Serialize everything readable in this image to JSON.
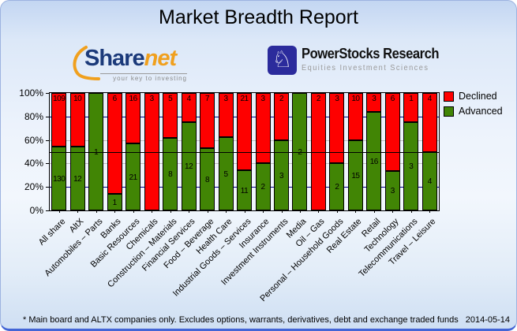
{
  "title": "Market Breadth Report",
  "logos": {
    "sharenet": {
      "part1": "Share",
      "part2": "net",
      "tagline": "your key to investing"
    },
    "powerstocks": {
      "name": "PowerStocks  Research",
      "tagline": "Equities Investment Sciences",
      "icon": "knight-chess-icon"
    }
  },
  "chart_data": {
    "type": "bar",
    "stacked": true,
    "unit": "counts shown as % of total",
    "categories": [
      "All share",
      "AltX",
      "Automobiles – Parts",
      "Banks",
      "Basic Resources",
      "Chemicals",
      "Construction – Materials",
      "Financial Services",
      "Food – Beverage",
      "Health Care",
      "Industrial Goods – Services",
      "Insurance",
      "Investment Instruments",
      "Media",
      "Oil – Gas",
      "Personal – Household Goods",
      "Real Estate",
      "Retail",
      "Technology",
      "Telecommunications",
      "Travel – Leisure"
    ],
    "series": [
      {
        "name": "Declined",
        "color": "#fe0000",
        "values": [
          109,
          10,
          0,
          6,
          16,
          3,
          5,
          4,
          7,
          3,
          21,
          3,
          2,
          0,
          2,
          3,
          10,
          3,
          6,
          1,
          4
        ]
      },
      {
        "name": "Advanced",
        "color": "#418505",
        "values": [
          130,
          12,
          1,
          1,
          21,
          0,
          8,
          12,
          8,
          5,
          11,
          2,
          3,
          2,
          0,
          2,
          15,
          16,
          3,
          3,
          4
        ]
      }
    ],
    "ylim": [
      0,
      100
    ],
    "ytick_labels": [
      "0%",
      "20%",
      "40%",
      "60%",
      "80%",
      "100%"
    ],
    "midline": 50,
    "legend_position": "top-right",
    "grid": "on"
  },
  "footer": {
    "note": "* Main board and ALTX companies only. Excludes options, warrants, derivatives, debt and exchange traded funds",
    "date": "2014-05-14"
  }
}
